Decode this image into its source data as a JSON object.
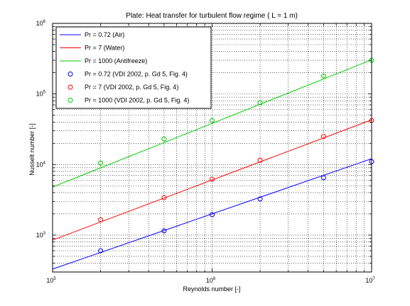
{
  "chart_data": {
    "type": "line",
    "title": "Plate: Heat transfer for turbulent flow regime ( L = 1 m)",
    "xlabel": "Reynolds number [-]",
    "ylabel": "Nusselt number [-]",
    "x_scale": "log",
    "y_scale": "log",
    "xlim": [
      100000,
      10000000
    ],
    "ylim": [
      300,
      1000000
    ],
    "x_ticks": [
      {
        "value": 100000,
        "base": "10",
        "exp": "5"
      },
      {
        "value": 1000000,
        "base": "10",
        "exp": "6"
      },
      {
        "value": 10000000,
        "base": "10",
        "exp": "7"
      }
    ],
    "y_ticks": [
      {
        "value": 1000,
        "base": "10",
        "exp": "3"
      },
      {
        "value": 10000,
        "base": "10",
        "exp": "4"
      },
      {
        "value": 100000,
        "base": "10",
        "exp": "5"
      },
      {
        "value": 1000000,
        "base": "10",
        "exp": "6"
      }
    ],
    "grid": true,
    "legend_position": "top-left",
    "series": [
      {
        "name": "Pr = 0.72 (Air)",
        "style": "line",
        "color": "#0000ff",
        "x": [
          100000,
          10000000
        ],
        "y": [
          330,
          12100
        ]
      },
      {
        "name": "Pr = 7 (Water)",
        "style": "line",
        "color": "#ff0000",
        "x": [
          100000,
          10000000
        ],
        "y": [
          850,
          43000
        ]
      },
      {
        "name": "Pr = 1000 (Antifreeze)",
        "style": "line",
        "color": "#00cc00",
        "x": [
          100000,
          10000000
        ],
        "y": [
          4800,
          305000
        ]
      },
      {
        "name": "Pr = 0.72 (VDI 2002, p. Gd 5, Fig. 4)",
        "style": "marker",
        "color": "#0000ff",
        "x": [
          200000,
          500000,
          1000000,
          2000000,
          5000000,
          10000000
        ],
        "y": [
          600,
          1150,
          1950,
          3250,
          6500,
          11000
        ]
      },
      {
        "name": "Pr = 7 (VDI 2002, p. Gd 5, Fig. 4)",
        "style": "marker",
        "color": "#ff0000",
        "x": [
          200000,
          500000,
          1000000,
          2000000,
          5000000,
          10000000
        ],
        "y": [
          1650,
          3400,
          6200,
          11500,
          25000,
          42000
        ]
      },
      {
        "name": "Pr = 1000 (VDI 2002, p. Gd 5, Fig. 4)",
        "style": "marker",
        "color": "#00cc00",
        "x": [
          200000,
          500000,
          1000000,
          2000000,
          5000000,
          10000000
        ],
        "y": [
          10500,
          23000,
          42000,
          75000,
          180000,
          300000
        ]
      }
    ]
  }
}
